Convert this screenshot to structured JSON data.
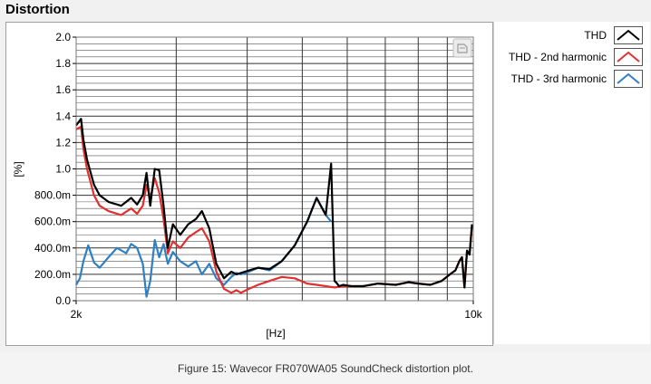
{
  "panel": {
    "title": "Distortion"
  },
  "caption": "Figure 15: Wavecor FR070WA05 SoundCheck distortion plot.",
  "colors": {
    "thd": "#000000",
    "thd2": "#e03030",
    "thd3": "#2f7fc4",
    "grid": "#444444",
    "background": "#f1f1f1"
  },
  "chart_data": {
    "type": "line",
    "title": "Distortion",
    "xlabel": "[Hz]",
    "ylabel": "[%]",
    "xscale": "log",
    "xlim": [
      2000,
      10000
    ],
    "ylim": [
      0,
      2.0
    ],
    "x_ticks": [
      {
        "value": 2000,
        "label": "2k"
      },
      {
        "value": 10000,
        "label": "10k"
      }
    ],
    "y_ticks": [
      {
        "value": 0.0,
        "label": "0.0"
      },
      {
        "value": 0.2,
        "label": "200.0m"
      },
      {
        "value": 0.4,
        "label": "400.0m"
      },
      {
        "value": 0.6,
        "label": "600.0m"
      },
      {
        "value": 0.8,
        "label": "800.0m"
      },
      {
        "value": 1.0,
        "label": "1.0"
      },
      {
        "value": 1.2,
        "label": "1.2"
      },
      {
        "value": 1.4,
        "label": "1.4"
      },
      {
        "value": 1.6,
        "label": "1.6"
      },
      {
        "value": 1.8,
        "label": "1.8"
      },
      {
        "value": 2.0,
        "label": "2.0"
      }
    ],
    "grid": true,
    "legend_position": "right",
    "series": [
      {
        "name": "THD",
        "color": "#000000",
        "x": [
          2000,
          2040,
          2060,
          2090,
          2150,
          2200,
          2280,
          2400,
          2500,
          2560,
          2620,
          2660,
          2700,
          2750,
          2800,
          2850,
          2900,
          2960,
          3050,
          3150,
          3250,
          3330,
          3430,
          3530,
          3640,
          3750,
          3830,
          3900,
          4030,
          4180,
          4380,
          4600,
          4850,
          5100,
          5300,
          5500,
          5620,
          5700,
          5760,
          5800,
          5900,
          6100,
          6400,
          6800,
          7300,
          7700,
          8000,
          8400,
          8800,
          9100,
          9300,
          9450,
          9550,
          9650,
          9750,
          9850,
          9950
        ],
        "values": [
          1.33,
          1.38,
          1.22,
          1.07,
          0.88,
          0.8,
          0.75,
          0.72,
          0.78,
          0.73,
          0.8,
          0.97,
          0.72,
          1.0,
          0.99,
          0.72,
          0.4,
          0.58,
          0.5,
          0.58,
          0.62,
          0.68,
          0.55,
          0.28,
          0.17,
          0.22,
          0.2,
          0.21,
          0.23,
          0.25,
          0.24,
          0.3,
          0.42,
          0.6,
          0.78,
          0.65,
          1.04,
          0.15,
          0.13,
          0.11,
          0.12,
          0.11,
          0.11,
          0.13,
          0.12,
          0.14,
          0.13,
          0.12,
          0.15,
          0.2,
          0.23,
          0.3,
          0.33,
          0.1,
          0.38,
          0.35,
          0.58
        ]
      },
      {
        "name": "THD - 2nd harmonic",
        "color": "#e03030",
        "x": [
          2000,
          2040,
          2060,
          2090,
          2150,
          2200,
          2280,
          2400,
          2500,
          2560,
          2620,
          2660,
          2700,
          2750,
          2800,
          2850,
          2900,
          2960,
          3050,
          3150,
          3250,
          3330,
          3430,
          3530,
          3640,
          3750,
          3830,
          3900,
          4030,
          4180,
          4380,
          4600,
          4850,
          5100,
          5300,
          5500,
          5700,
          5900,
          6100,
          6400,
          6800,
          7300,
          7700,
          8000,
          8400,
          8800,
          9100,
          9300,
          9450,
          9550,
          9650,
          9750,
          9850,
          9950
        ],
        "values": [
          1.3,
          1.32,
          1.15,
          1.0,
          0.8,
          0.72,
          0.68,
          0.65,
          0.7,
          0.66,
          0.72,
          0.88,
          0.78,
          0.93,
          0.82,
          0.62,
          0.36,
          0.45,
          0.4,
          0.48,
          0.52,
          0.55,
          0.45,
          0.22,
          0.09,
          0.06,
          0.08,
          0.06,
          0.09,
          0.12,
          0.15,
          0.18,
          0.17,
          0.13,
          0.12,
          0.11,
          0.1,
          0.11,
          0.11,
          0.11,
          0.13,
          0.12,
          0.14,
          0.13,
          0.12,
          0.15,
          0.2,
          0.23,
          0.3,
          0.33,
          0.1,
          0.38,
          0.35,
          0.58
        ]
      },
      {
        "name": "THD - 3rd harmonic",
        "color": "#2f7fc4",
        "x": [
          2000,
          2030,
          2060,
          2100,
          2150,
          2200,
          2280,
          2360,
          2450,
          2500,
          2560,
          2620,
          2660,
          2700,
          2750,
          2800,
          2850,
          2900,
          2960,
          3050,
          3150,
          3250,
          3330,
          3430,
          3530,
          3640,
          3750,
          3830,
          3900,
          4030,
          4180,
          4380,
          4600,
          4850,
          5100,
          5300,
          5500,
          5620
        ],
        "values": [
          0.12,
          0.17,
          0.3,
          0.42,
          0.29,
          0.25,
          0.33,
          0.4,
          0.36,
          0.43,
          0.4,
          0.28,
          0.03,
          0.15,
          0.46,
          0.33,
          0.43,
          0.28,
          0.37,
          0.3,
          0.26,
          0.3,
          0.2,
          0.28,
          0.17,
          0.12,
          0.18,
          0.21,
          0.2,
          0.22,
          0.25,
          0.23,
          0.3,
          0.42,
          0.6,
          0.78,
          0.65,
          0.6
        ]
      }
    ]
  }
}
